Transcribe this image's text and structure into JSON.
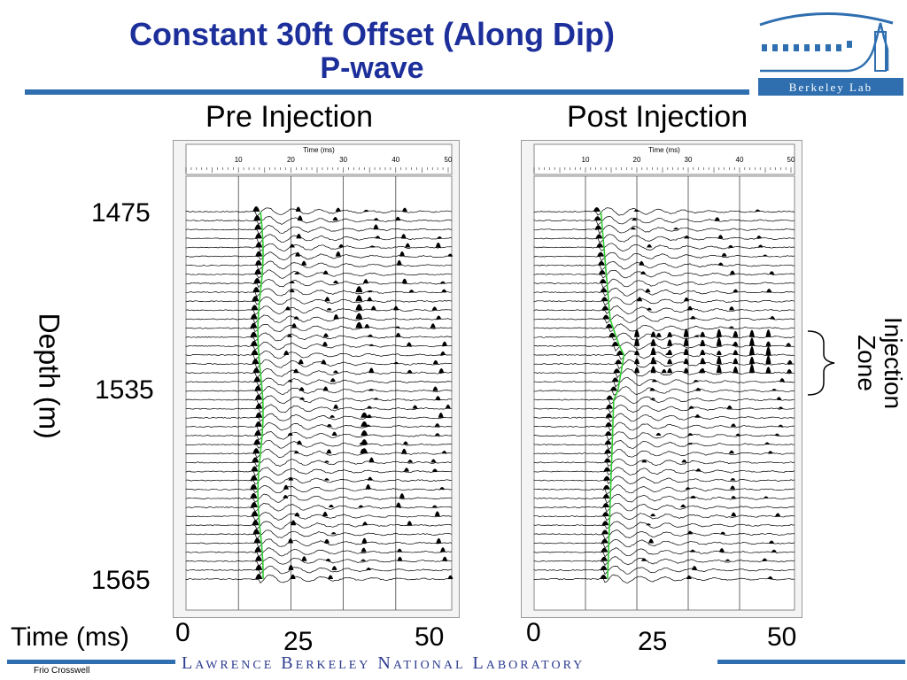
{
  "title_line1": "Constant 30ft Offset (Along Dip)",
  "title_line2": "P-wave",
  "logo_text": "Berkeley Lab",
  "footer": "Lawrence Berkeley National Laboratory",
  "credit": "Frio Crosswell",
  "panels": [
    {
      "title": "Pre Injection",
      "time_axis_label": "Time (ms)",
      "ticks": [
        "10",
        "20",
        "30",
        "40",
        "50"
      ]
    },
    {
      "title": "Post Injection",
      "time_axis_label": "Time (ms)",
      "ticks": [
        "10",
        "20",
        "30",
        "40",
        "50"
      ]
    }
  ],
  "depth_label": "Depth (m)",
  "depth_ticks": [
    "1475",
    "1535",
    "1565"
  ],
  "time_label": "Time (ms)",
  "time_ticks_left": [
    "0",
    "25",
    "50"
  ],
  "time_ticks_right": [
    "0",
    "25",
    "50"
  ],
  "injection_label_line1": "Injection",
  "injection_label_line2": "Zone",
  "colors": {
    "title": "#1c2f9a",
    "rule": "#2f6fb0",
    "pick": "#33cc33"
  }
}
